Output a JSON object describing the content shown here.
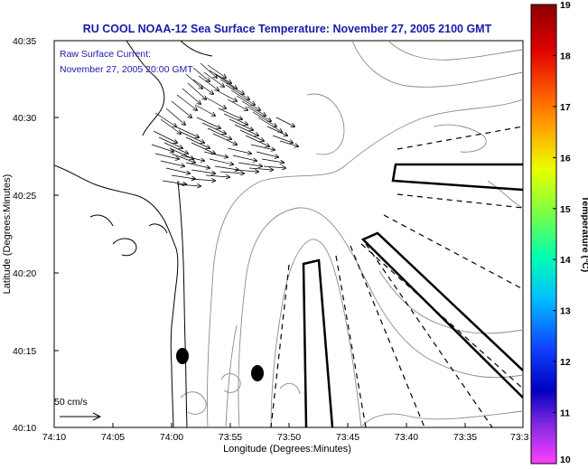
{
  "header": {
    "title": "RU COOL  NOAA-12  Sea Surface Temperature:  November 27, 2005 2100 GMT"
  },
  "inset": {
    "line1": "Raw Surface Current:",
    "line2": "November 27, 2005 20:00 GMT"
  },
  "axes": {
    "xlabel": "Longitude (Degrees:Minutes)",
    "ylabel": "Latitude (Degrees:Minutes)",
    "xticks": [
      "74:10",
      "74:05",
      "74:00",
      "73:55",
      "73:50",
      "73:45",
      "73:40",
      "73:35",
      "73:3"
    ],
    "yticks": [
      "40:35",
      "40:30",
      "40:25",
      "40:20",
      "40:15",
      "40:10"
    ]
  },
  "scale": {
    "label": "50 cm/s"
  },
  "colorbar": {
    "label": "Temperature (°C)",
    "min": 10,
    "max": 19,
    "ticks": [
      "19",
      "18",
      "17",
      "16",
      "15",
      "14",
      "13",
      "12",
      "11",
      "10"
    ],
    "stops": [
      "#8b0000",
      "#e00000",
      "#ff6000",
      "#ffb000",
      "#e8ff00",
      "#80ff40",
      "#00ffb0",
      "#00c0ff",
      "#1040ff",
      "#0000c0",
      "#8a2be2",
      "#ff40ff"
    ]
  },
  "colors": {
    "title": "#1a1aaa",
    "coast": "#000000",
    "contour": "#888888"
  }
}
